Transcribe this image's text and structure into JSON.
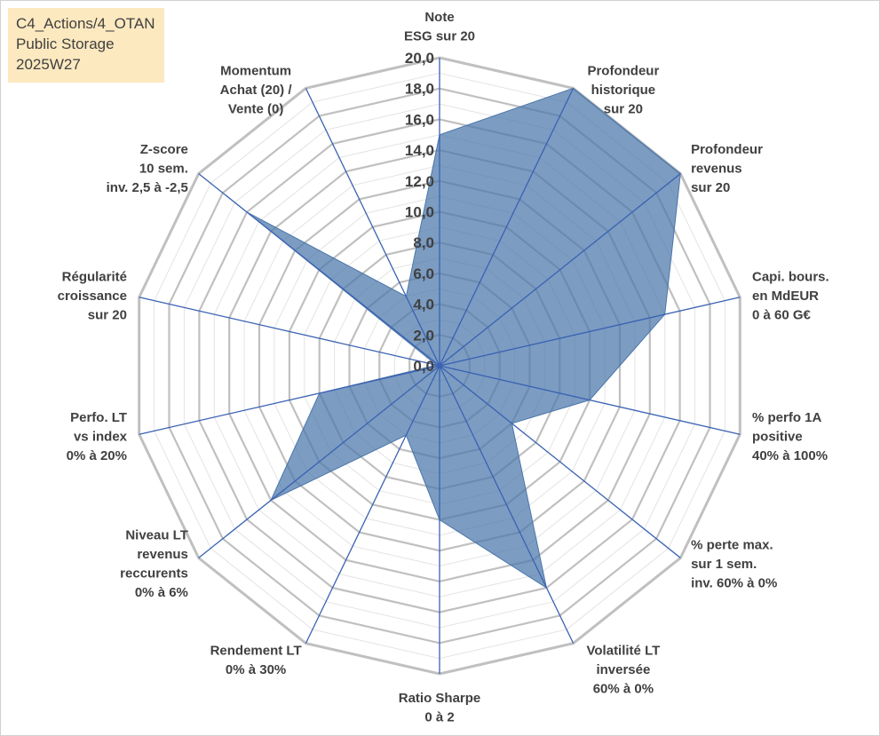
{
  "info_box": {
    "line1": "C4_Actions/4_OTAN",
    "line2": "Public Storage",
    "line3": "2025W27"
  },
  "colors": {
    "fill": "#4a76aa",
    "axis": "#3a62b2",
    "grid_major": "#c0c0c0",
    "grid_minor": "#e3e3e3",
    "text": "#404040"
  },
  "chart_data": {
    "type": "radar",
    "title": "",
    "rmin": 0,
    "rmax": 20,
    "ticks": [
      "0,0",
      "2,0",
      "4,0",
      "6,0",
      "8,0",
      "10,0",
      "12,0",
      "14,0",
      "16,0",
      "18,0",
      "20,0"
    ],
    "categories": [
      [
        "Note",
        "ESG sur 20"
      ],
      [
        "Profondeur",
        "historique",
        "sur 20"
      ],
      [
        "Profondeur",
        "revenus",
        "sur 20"
      ],
      [
        "Capi. bours.",
        "en MdEUR",
        "0 à 60 G€"
      ],
      [
        "% perfo 1A",
        "positive",
        "40% à 100%"
      ],
      [
        "% perte max.",
        "sur 1 sem.",
        "inv. 60% à 0%"
      ],
      [
        "Volatilité LT",
        "inversée",
        "60% à 0%"
      ],
      [
        "Ratio Sharpe",
        "0 à 2"
      ],
      [
        "Rendement LT",
        "0% à 30%"
      ],
      [
        "Niveau LT",
        "revenus",
        "reccurents",
        "0% à 6%"
      ],
      [
        "Perfo. LT",
        "vs index",
        "0% à 20%"
      ],
      [
        "Régularité",
        "croissance",
        "sur 20"
      ],
      [
        "Z-score",
        "10 sem.",
        "inv. 2,5 à -2,5"
      ],
      [
        "Momentum",
        "Achat (20) /",
        "Vente (0)"
      ]
    ],
    "series": [
      {
        "values": [
          15.0,
          20.0,
          20.0,
          15.0,
          10.0,
          6.0,
          16.0,
          10.0,
          5.0,
          14.0,
          8.0,
          0.2,
          16.0,
          5.0
        ]
      }
    ]
  }
}
